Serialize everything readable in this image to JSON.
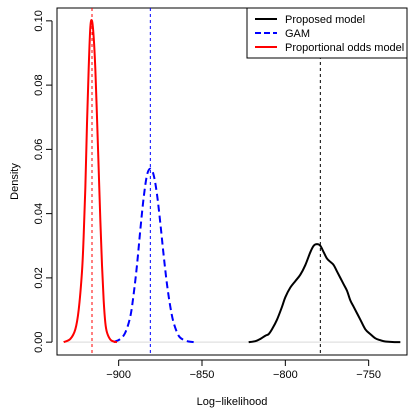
{
  "chart_data": {
    "type": "line",
    "title": "",
    "xlabel": "Log−likelihood",
    "ylabel": "Density",
    "xlim": [
      -937,
      -727
    ],
    "ylim": [
      -0.004,
      0.104
    ],
    "x_ticks": [
      -900,
      -850,
      -800,
      -750
    ],
    "x_tick_labels": [
      "−900",
      "−850",
      "−800",
      "−750"
    ],
    "y_ticks": [
      0.0,
      0.02,
      0.04,
      0.06,
      0.08,
      0.1
    ],
    "y_tick_labels": [
      "0.00",
      "0.02",
      "0.04",
      "0.06",
      "0.08",
      "0.10"
    ],
    "grid": false,
    "legend_position": "top-right",
    "series": [
      {
        "name": "Proposed model",
        "color": "#000000",
        "style": "solid",
        "x": [
          -822,
          -818,
          -815,
          -812,
          -810,
          -808,
          -805,
          -802,
          -800,
          -797,
          -794,
          -791,
          -788,
          -785,
          -783,
          -781,
          -779,
          -777,
          -775,
          -773,
          -771,
          -769,
          -767,
          -765,
          -763,
          -761,
          -759,
          -757,
          -755,
          -752,
          -749,
          -746,
          -743,
          -740,
          -737,
          -733,
          -731
        ],
        "y": [
          0.0,
          0.0003,
          0.001,
          0.002,
          0.0025,
          0.004,
          0.007,
          0.011,
          0.014,
          0.017,
          0.019,
          0.021,
          0.024,
          0.028,
          0.03,
          0.0305,
          0.03,
          0.028,
          0.026,
          0.025,
          0.024,
          0.022,
          0.02,
          0.018,
          0.016,
          0.013,
          0.011,
          0.009,
          0.007,
          0.004,
          0.0025,
          0.0012,
          0.0006,
          0.0002,
          0.0001,
          0.0,
          0.0
        ]
      },
      {
        "name": "GAM",
        "color": "#0000ff",
        "style": "dashed",
        "x": [
          -903,
          -899,
          -896,
          -893,
          -891,
          -889,
          -887,
          -885,
          -883,
          -881,
          -879,
          -877,
          -875,
          -873,
          -871,
          -869,
          -867,
          -864,
          -861,
          -858,
          -855
        ],
        "y": [
          0.0,
          0.001,
          0.003,
          0.008,
          0.015,
          0.024,
          0.035,
          0.045,
          0.052,
          0.054,
          0.052,
          0.046,
          0.037,
          0.027,
          0.018,
          0.011,
          0.006,
          0.002,
          0.0007,
          0.0002,
          0.0
        ]
      },
      {
        "name": "Proportional odds model",
        "color": "#ff0000",
        "style": "solid",
        "x": [
          -933,
          -929,
          -926,
          -924,
          -922,
          -921,
          -920,
          -919,
          -918,
          -917,
          -916,
          -915,
          -914,
          -913,
          -912,
          -911,
          -910,
          -909,
          -908,
          -907,
          -905,
          -903,
          -901
        ],
        "y": [
          0.0,
          0.001,
          0.004,
          0.01,
          0.022,
          0.033,
          0.048,
          0.068,
          0.085,
          0.098,
          0.1,
          0.095,
          0.085,
          0.07,
          0.054,
          0.038,
          0.024,
          0.013,
          0.006,
          0.003,
          0.0008,
          0.0002,
          0.0
        ]
      }
    ],
    "vertical_lines": [
      {
        "x": -916,
        "color": "#ff0000",
        "style": "dashed"
      },
      {
        "x": -881,
        "color": "#0000ff",
        "style": "dashed"
      },
      {
        "x": -779,
        "color": "#000000",
        "style": "dashed"
      }
    ],
    "baseline": {
      "y": 0,
      "color": "#d9d9d9"
    }
  }
}
